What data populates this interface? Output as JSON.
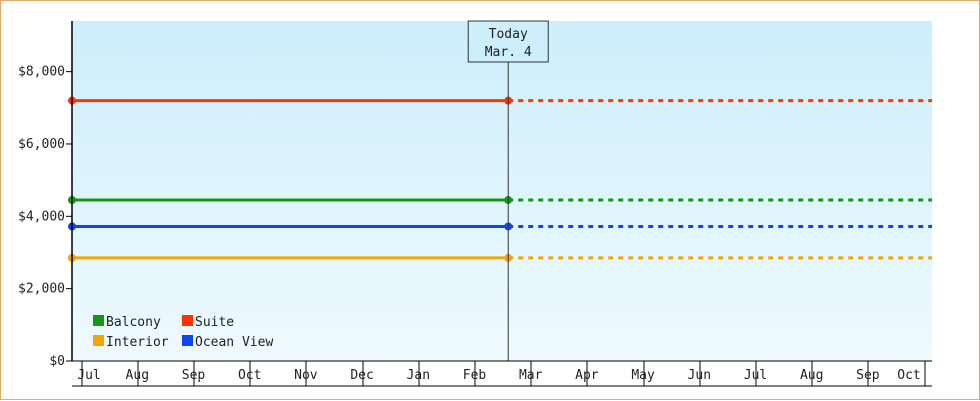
{
  "chart_data": {
    "type": "line",
    "title": "",
    "xlabel": "",
    "ylabel": "",
    "ylim": [
      0,
      9400
    ],
    "y_ticks": [
      {
        "value": 0,
        "label": "$0"
      },
      {
        "value": 2000,
        "label": "$2,000"
      },
      {
        "value": 4000,
        "label": "$4,000"
      },
      {
        "value": 6000,
        "label": "$6,000"
      },
      {
        "value": 8000,
        "label": "$8,000"
      }
    ],
    "x_months": [
      "Jul",
      "Aug",
      "Sep",
      "Oct",
      "Nov",
      "Dec",
      "Jan",
      "Feb",
      "Mar",
      "Apr",
      "May",
      "Jun",
      "Jul",
      "Aug",
      "Sep",
      "Oct"
    ],
    "today": {
      "label_line1": "Today",
      "label_line2": "Mar. 4",
      "month_index": 8.1
    },
    "grid": false,
    "legend_position": "bottom-left",
    "background": {
      "top": "#cdeefb",
      "bottom": "#effaff"
    },
    "series": [
      {
        "name": "Suite",
        "color": "#ff3300",
        "start_index": 0,
        "today_index": 8.1,
        "value": 7200,
        "projected": true
      },
      {
        "name": "Balcony",
        "color": "#119911",
        "start_index": 0,
        "today_index": 8.1,
        "value": 4450,
        "projected": true
      },
      {
        "name": "Ocean View",
        "color": "#1144ee",
        "start_index": 0,
        "today_index": 8.1,
        "value": 3720,
        "projected": true
      },
      {
        "name": "Interior",
        "color": "#f5a500",
        "start_index": 0,
        "today_index": 8.1,
        "value": 2850,
        "projected": true
      }
    ],
    "legend": [
      {
        "name": "Balcony",
        "color": "#119911"
      },
      {
        "name": "Suite",
        "color": "#ff3300"
      },
      {
        "name": "Interior",
        "color": "#f5a500"
      },
      {
        "name": "Ocean View",
        "color": "#1144ee"
      }
    ]
  }
}
